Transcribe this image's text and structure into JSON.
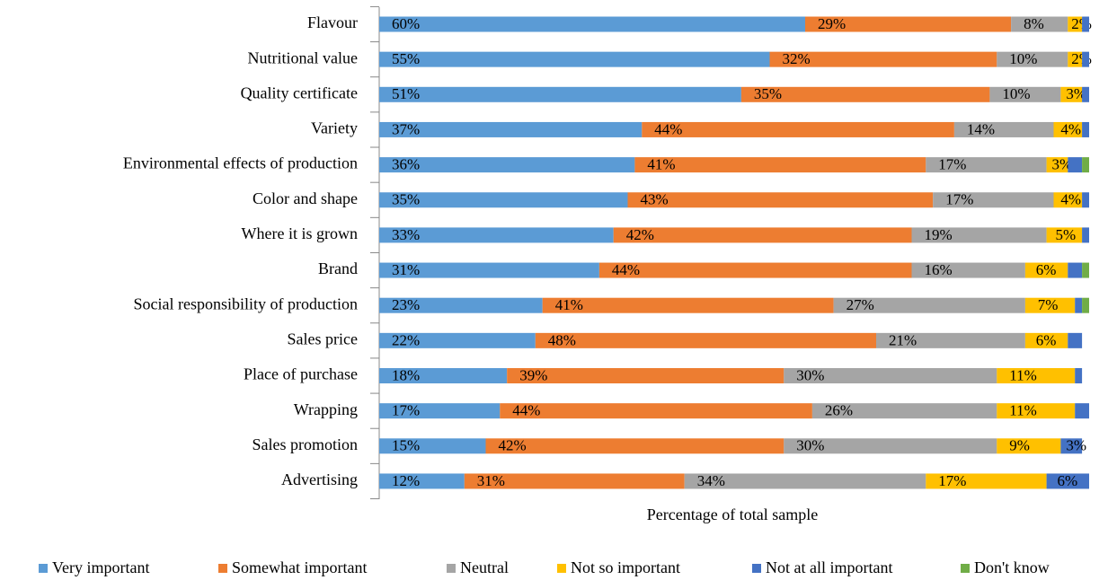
{
  "chart_data": {
    "type": "stacked-bar-horizontal",
    "x_label": "Percentage of total sample",
    "xlim": [
      0,
      100
    ],
    "categories": [
      "Flavour",
      "Nutritional value",
      "Quality certificate",
      "Variety",
      "Environmental effects of  production",
      "Color and shape",
      "Where it is grown",
      "Brand",
      "Social responsibility of production",
      "Sales price",
      "Place of purchase",
      "Wrapping",
      "Sales promotion",
      "Advertising"
    ],
    "series": [
      {
        "name": "Very important",
        "color": "#5b9bd5",
        "values": [
          60,
          55,
          51,
          37,
          36,
          35,
          33,
          31,
          23,
          22,
          18,
          17,
          15,
          12
        ],
        "value_labels": [
          "60%",
          "55%",
          "51%",
          "37%",
          "36%",
          "35%",
          "33%",
          "31%",
          "23%",
          "22%",
          "18%",
          "17%",
          "15%",
          "12%"
        ]
      },
      {
        "name": "Somewhat important",
        "color": "#ed7d31",
        "values": [
          29,
          32,
          35,
          44,
          41,
          43,
          42,
          44,
          41,
          48,
          39,
          44,
          42,
          31
        ],
        "value_labels": [
          "29%",
          "32%",
          "35%",
          "44%",
          "41%",
          "43%",
          "42%",
          "44%",
          "41%",
          "48%",
          "39%",
          "44%",
          "42%",
          "31%"
        ]
      },
      {
        "name": "Neutral",
        "color": "#a5a5a5",
        "values": [
          8,
          10,
          10,
          14,
          17,
          17,
          19,
          16,
          27,
          21,
          30,
          26,
          30,
          34
        ],
        "value_labels": [
          "8%",
          "10%",
          "10%",
          "14%",
          "17%",
          "17%",
          "19%",
          "16%",
          "27%",
          "21%",
          "30%",
          "26%",
          "30%",
          "34%"
        ]
      },
      {
        "name": "Not so important",
        "color": "#ffc000",
        "values": [
          2,
          2,
          3,
          4,
          3,
          4,
          5,
          6,
          7,
          6,
          11,
          11,
          9,
          17
        ],
        "value_labels": [
          "2%",
          "2%",
          "3%",
          "4%",
          "3%",
          "4%",
          "5%",
          "6%",
          "7%",
          "6%",
          "11%",
          "11%",
          "9%",
          "17%"
        ]
      },
      {
        "name": "Not at all important",
        "color": "#4472c4",
        "values": [
          1,
          1,
          1,
          1,
          2,
          1,
          1,
          2,
          1,
          2,
          1,
          2,
          3,
          6
        ],
        "value_labels": [
          null,
          null,
          null,
          null,
          null,
          null,
          null,
          null,
          null,
          null,
          null,
          null,
          "3%",
          "6%"
        ]
      },
      {
        "name": "Don't know",
        "color": "#70ad47",
        "values": [
          0,
          0,
          0,
          0,
          1,
          0,
          0,
          1,
          1,
          0,
          0,
          0,
          0,
          0
        ],
        "value_labels": [
          null,
          null,
          null,
          null,
          null,
          null,
          null,
          null,
          null,
          null,
          null,
          null,
          null,
          null
        ]
      }
    ]
  }
}
